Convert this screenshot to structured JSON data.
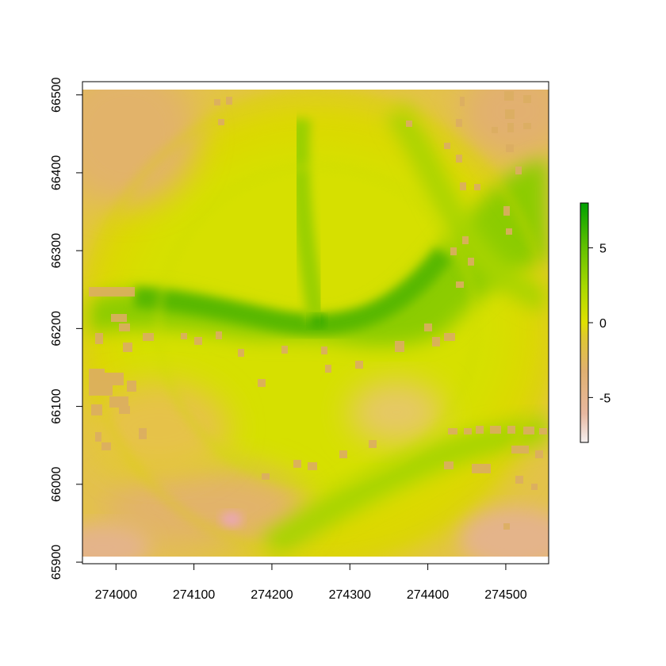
{
  "chart_data": {
    "type": "heatmap",
    "title": "",
    "xlabel": "",
    "ylabel": "",
    "xlim": [
      273957,
      274555
    ],
    "ylim": [
      65898,
      66517
    ],
    "raster_extent": {
      "x": [
        273957,
        274555
      ],
      "y": [
        65908,
        66507
      ]
    },
    "x_ticks": [
      274000,
      274100,
      274200,
      274300,
      274400,
      274500
    ],
    "x_tick_labels": [
      "274000",
      "274100",
      "274200",
      "274300",
      "274400",
      "274500"
    ],
    "y_ticks": [
      65900,
      66000,
      66100,
      66200,
      66300,
      66400,
      66500
    ],
    "y_tick_labels": [
      "65900",
      "66000",
      "66100",
      "66200",
      "66300",
      "66400",
      "66500"
    ],
    "colorbar": {
      "range": [
        -8,
        8
      ],
      "ticks": [
        5,
        0,
        -5
      ],
      "tick_labels": [
        "5",
        "0",
        "-5"
      ],
      "colors": [
        "#f5f0f0",
        "#e8b8a0",
        "#e0b070",
        "#dfc830",
        "#e0e000",
        "#a8d800",
        "#60c000",
        "#00a000"
      ]
    },
    "features": {
      "central_ridge": {
        "value": 5,
        "description": ""
      },
      "center_peak": {
        "x": 274260,
        "y": 66210,
        "value": 7
      },
      "background_value": 0,
      "corner_value": -3
    },
    "colors": {
      "high": "#00a000",
      "mid": "#e0e000",
      "low": "#e0b070",
      "min": "#f5f0f0"
    }
  }
}
